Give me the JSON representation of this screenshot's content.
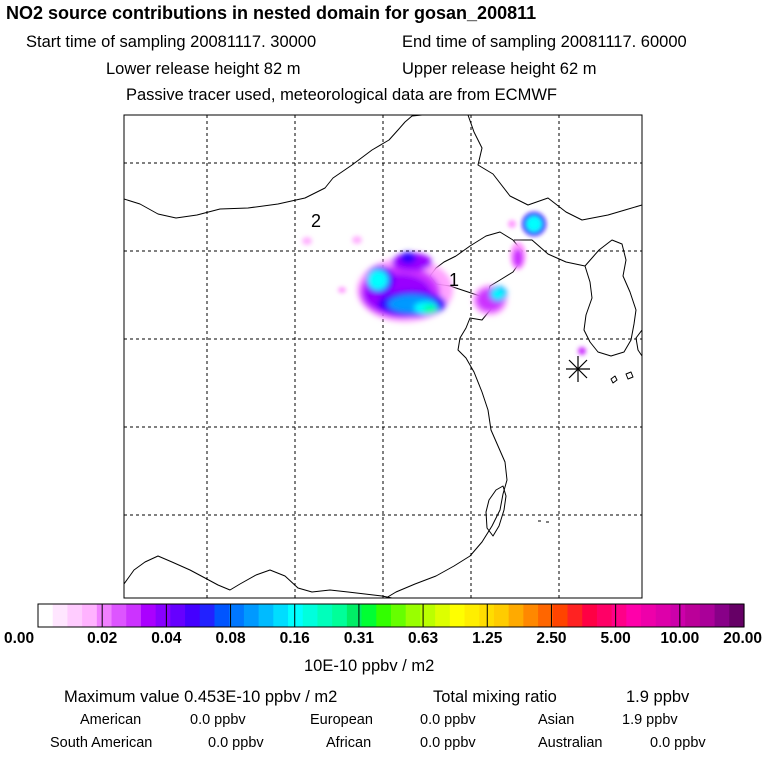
{
  "header": {
    "title": "NO2 source contributions in nested domain for gosan_200811",
    "start_label": "Start time of sampling 20081117. 30000",
    "end_label": "End time of sampling 20081117. 60000",
    "lower_label": "Lower release height   82 m",
    "upper_label": "Upper release height   62 m",
    "tracer_label": "Passive tracer used, meteorological data are from ECMWF"
  },
  "map": {
    "markers": {
      "source_1": "1",
      "source_2": "2"
    },
    "receptor_icon": "asterisk-star-icon",
    "plume_colors": [
      "#ff99ff",
      "#cc33ff",
      "#9900ff",
      "#3300ff",
      "#0099ff",
      "#00ffff",
      "#00ff99"
    ]
  },
  "colorbar": {
    "tick_labels": [
      "0.00",
      "0.02",
      "0.04",
      "0.08",
      "0.16",
      "0.31",
      "0.63",
      "1.25",
      "2.50",
      "5.00",
      "10.00",
      "20.00"
    ],
    "colors": [
      "#ffffff",
      "#ffe6ff",
      "#ffccff",
      "#ffb3ff",
      "#f080ff",
      "#dd55ff",
      "#cc33ff",
      "#aa00ff",
      "#8800ff",
      "#6600ff",
      "#4400ff",
      "#2222ff",
      "#0055ff",
      "#0077ff",
      "#0099ff",
      "#00bbff",
      "#00ddff",
      "#00ffff",
      "#00ffdd",
      "#00ffbb",
      "#00ff99",
      "#00ee66",
      "#00ff33",
      "#33ff00",
      "#66ff00",
      "#99ff00",
      "#bbff00",
      "#ddff00",
      "#ffff00",
      "#ffee00",
      "#ffdd00",
      "#ffcc00",
      "#ffaa00",
      "#ff8800",
      "#ff6600",
      "#ff4400",
      "#ff2222",
      "#ff0044",
      "#ff0066",
      "#ff0088",
      "#ff00aa",
      "#ee00aa",
      "#dd00aa",
      "#cc00aa",
      "#bb0099",
      "#aa0099",
      "#880088",
      "#660066"
    ],
    "unit_label": "10E-10 ppbv / m2"
  },
  "summary": {
    "max_label": "Maximum value  0.453E-10 ppbv / m2",
    "total_label": "Total mixing ratio",
    "total_value": "1.9 ppbv"
  },
  "regions": [
    {
      "name": "American",
      "value": "0.0 ppbv"
    },
    {
      "name": "European",
      "value": "0.0 ppbv"
    },
    {
      "name": "Asian",
      "value": "1.9 ppbv"
    },
    {
      "name": "South American",
      "value": "0.0 ppbv"
    },
    {
      "name": "African",
      "value": "0.0 ppbv"
    },
    {
      "name": "Australian",
      "value": "0.0 ppbv"
    }
  ]
}
